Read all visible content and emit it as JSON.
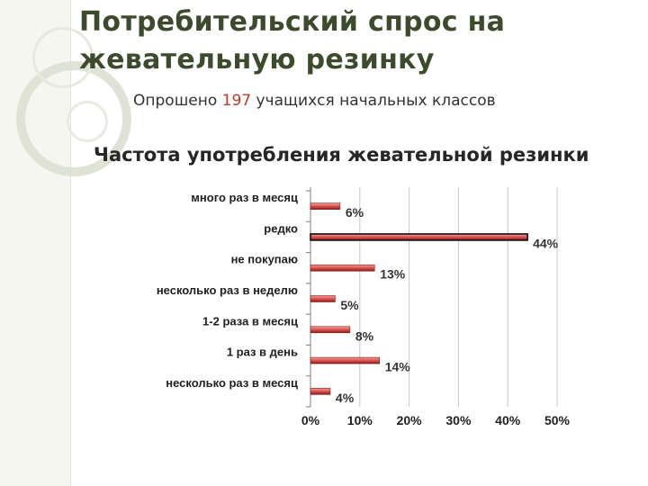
{
  "slide": {
    "title": "Потребительский спрос на жевательную резинку",
    "subtitle_prefix": "Опрошено ",
    "subtitle_number": "197",
    "subtitle_suffix": " учащихся начальных классов"
  },
  "colors": {
    "title": "#3d4a2c",
    "accent_number": "#c0392b",
    "bar_fill": "#d9534f",
    "bar_highlight": "#f2a09d",
    "bar_dark": "#8b1a1a"
  },
  "chart_data": {
    "type": "bar",
    "orientation": "horizontal",
    "title": "Частота употребления жевательной резинки",
    "categories": [
      "много раз в месяц",
      "редко",
      "не покупаю",
      "несколько раз в неделю",
      "1-2 раза в месяц",
      "1 раз в день",
      "несколько раз в месяц"
    ],
    "values": [
      6,
      44,
      13,
      5,
      8,
      14,
      4
    ],
    "data_labels": [
      "6%",
      "44%",
      "13%",
      "5%",
      "8%",
      "14%",
      "4%"
    ],
    "highlighted_category": "редко",
    "xlim": [
      0,
      50
    ],
    "xticks": [
      0,
      10,
      20,
      30,
      40,
      50
    ],
    "xtick_labels": [
      "0%",
      "10%",
      "20%",
      "30%",
      "40%",
      "50%"
    ],
    "grid": "vertical",
    "legend": "none"
  }
}
